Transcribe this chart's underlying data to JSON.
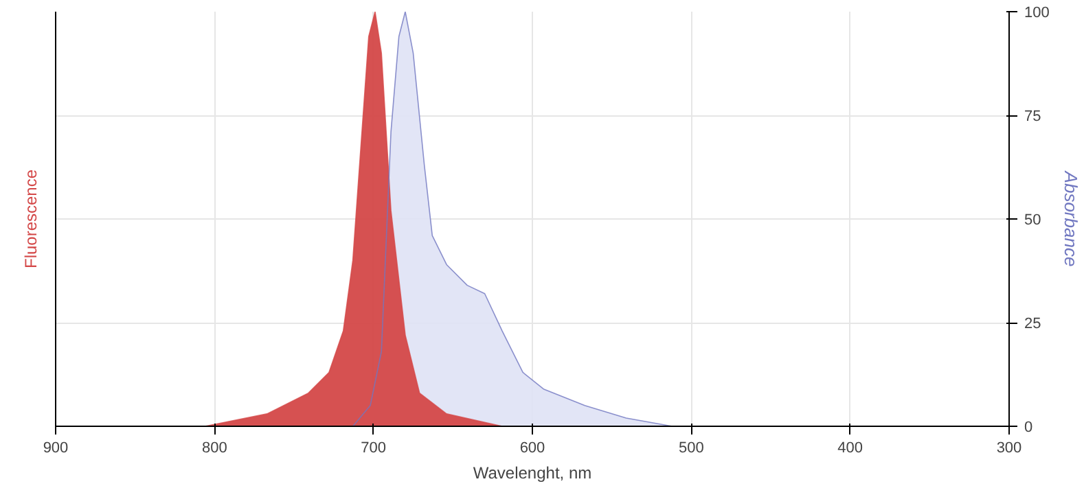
{
  "chart_data": {
    "type": "area",
    "xlabel": "Wavelenght, nm",
    "ylabel": "Absorbance",
    "y2label": "Fluorescence",
    "xlim": [
      900,
      300
    ],
    "xticks": [
      900,
      800,
      700,
      600,
      500,
      400,
      300
    ],
    "ylim": [
      0,
      100
    ],
    "yticks": [
      0,
      25,
      50,
      75,
      100
    ],
    "grid": true,
    "series": [
      {
        "color": "#7077c0",
        "x": [
          713,
          702,
          695,
          689,
          684,
          680,
          675,
          668,
          663,
          654,
          641,
          630,
          619,
          606,
          593,
          567,
          541,
          512
        ],
        "values": [
          0,
          5,
          18,
          71,
          94,
          100,
          90,
          63,
          46,
          39,
          34,
          32,
          23,
          13,
          9,
          5,
          2,
          0
        ]
      },
      {
        "color": "#d44848",
        "x": [
          806,
          767,
          741,
          728,
          719,
          713,
          708,
          703,
          699,
          695,
          689,
          680,
          671,
          654,
          619
        ],
        "values": [
          0,
          3,
          8,
          13,
          23,
          40,
          67,
          94,
          100,
          90,
          52,
          22,
          8,
          3,
          0
        ]
      }
    ]
  }
}
